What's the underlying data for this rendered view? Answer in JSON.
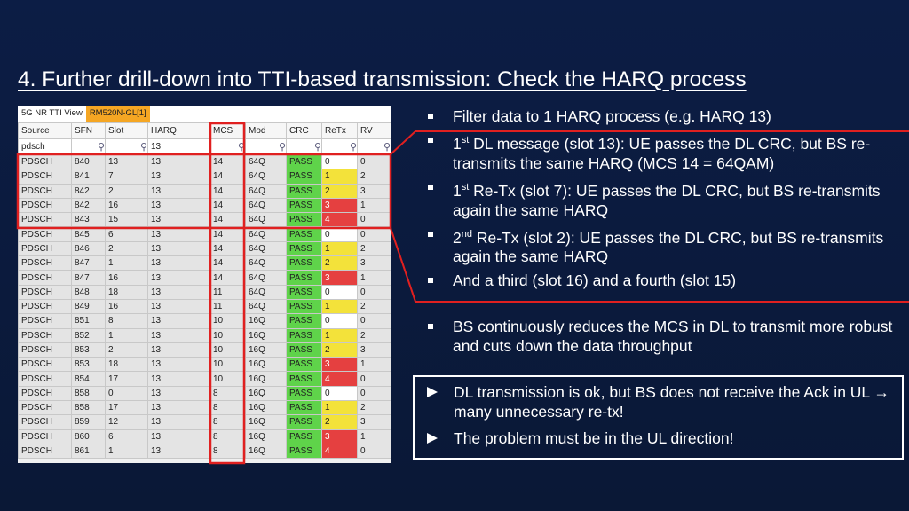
{
  "title": "4.  Further drill-down into TTI-based transmission: Check the HARQ process",
  "table": {
    "tabs": [
      "5G NR TTI View",
      "RM520N-GL[1]"
    ],
    "headers": [
      "Source",
      "SFN",
      "Slot",
      "HARQ",
      "MCS",
      "Mod",
      "CRC",
      "ReTx",
      "RV"
    ],
    "filters": {
      "source": "pdsch",
      "harq": "13"
    },
    "rows": [
      [
        "PDSCH",
        "840",
        "13",
        "13",
        "14",
        "64Q",
        "PASS",
        "0",
        "0"
      ],
      [
        "PDSCH",
        "841",
        "7",
        "13",
        "14",
        "64Q",
        "PASS",
        "1",
        "2"
      ],
      [
        "PDSCH",
        "842",
        "2",
        "13",
        "14",
        "64Q",
        "PASS",
        "2",
        "3"
      ],
      [
        "PDSCH",
        "842",
        "16",
        "13",
        "14",
        "64Q",
        "PASS",
        "3",
        "1"
      ],
      [
        "PDSCH",
        "843",
        "15",
        "13",
        "14",
        "64Q",
        "PASS",
        "4",
        "0"
      ],
      [
        "PDSCH",
        "845",
        "6",
        "13",
        "14",
        "64Q",
        "PASS",
        "0",
        "0"
      ],
      [
        "PDSCH",
        "846",
        "2",
        "13",
        "14",
        "64Q",
        "PASS",
        "1",
        "2"
      ],
      [
        "PDSCH",
        "847",
        "1",
        "13",
        "14",
        "64Q",
        "PASS",
        "2",
        "3"
      ],
      [
        "PDSCH",
        "847",
        "16",
        "13",
        "14",
        "64Q",
        "PASS",
        "3",
        "1"
      ],
      [
        "PDSCH",
        "848",
        "18",
        "13",
        "11",
        "64Q",
        "PASS",
        "0",
        "0"
      ],
      [
        "PDSCH",
        "849",
        "16",
        "13",
        "11",
        "64Q",
        "PASS",
        "1",
        "2"
      ],
      [
        "PDSCH",
        "851",
        "8",
        "13",
        "10",
        "16Q",
        "PASS",
        "0",
        "0"
      ],
      [
        "PDSCH",
        "852",
        "1",
        "13",
        "10",
        "16Q",
        "PASS",
        "1",
        "2"
      ],
      [
        "PDSCH",
        "853",
        "2",
        "13",
        "10",
        "16Q",
        "PASS",
        "2",
        "3"
      ],
      [
        "PDSCH",
        "853",
        "18",
        "13",
        "10",
        "16Q",
        "PASS",
        "3",
        "1"
      ],
      [
        "PDSCH",
        "854",
        "17",
        "13",
        "10",
        "16Q",
        "PASS",
        "4",
        "0"
      ],
      [
        "PDSCH",
        "858",
        "0",
        "13",
        "8",
        "16Q",
        "PASS",
        "0",
        "0"
      ],
      [
        "PDSCH",
        "858",
        "17",
        "13",
        "8",
        "16Q",
        "PASS",
        "1",
        "2"
      ],
      [
        "PDSCH",
        "859",
        "12",
        "13",
        "8",
        "16Q",
        "PASS",
        "2",
        "3"
      ],
      [
        "PDSCH",
        "860",
        "6",
        "13",
        "8",
        "16Q",
        "PASS",
        "3",
        "1"
      ],
      [
        "PDSCH",
        "861",
        "1",
        "13",
        "8",
        "16Q",
        "PASS",
        "4",
        "0"
      ]
    ]
  },
  "bullets": [
    {
      "text": "Filter data to 1 HARQ process (e.g. HARQ 13)"
    },
    {
      "lead": "1",
      "sup": "st",
      "text": " DL message (slot 13): UE passes the DL CRC, but BS re-transmits the same HARQ (MCS 14 = 64QAM)"
    },
    {
      "lead": "1",
      "sup": "st",
      "text": " Re-Tx (slot 7): UE passes the DL CRC, but BS re-transmits again the same HARQ"
    },
    {
      "lead": "2",
      "sup": "nd",
      "text": " Re-Tx (slot 2): UE passes the DL CRC, but BS re-transmits again the same HARQ"
    },
    {
      "text": "And a third (slot 16) and a fourth (slot 15)"
    }
  ],
  "bullets2": [
    {
      "text": "BS continuously reduces the MCS in DL to transmit more robust and cuts down the data throughput"
    }
  ],
  "conclusions": [
    "DL transmission is ok, but BS does not receive the Ack in UL → many unnecessary re-tx!",
    "The problem must be in the UL direction!"
  ]
}
